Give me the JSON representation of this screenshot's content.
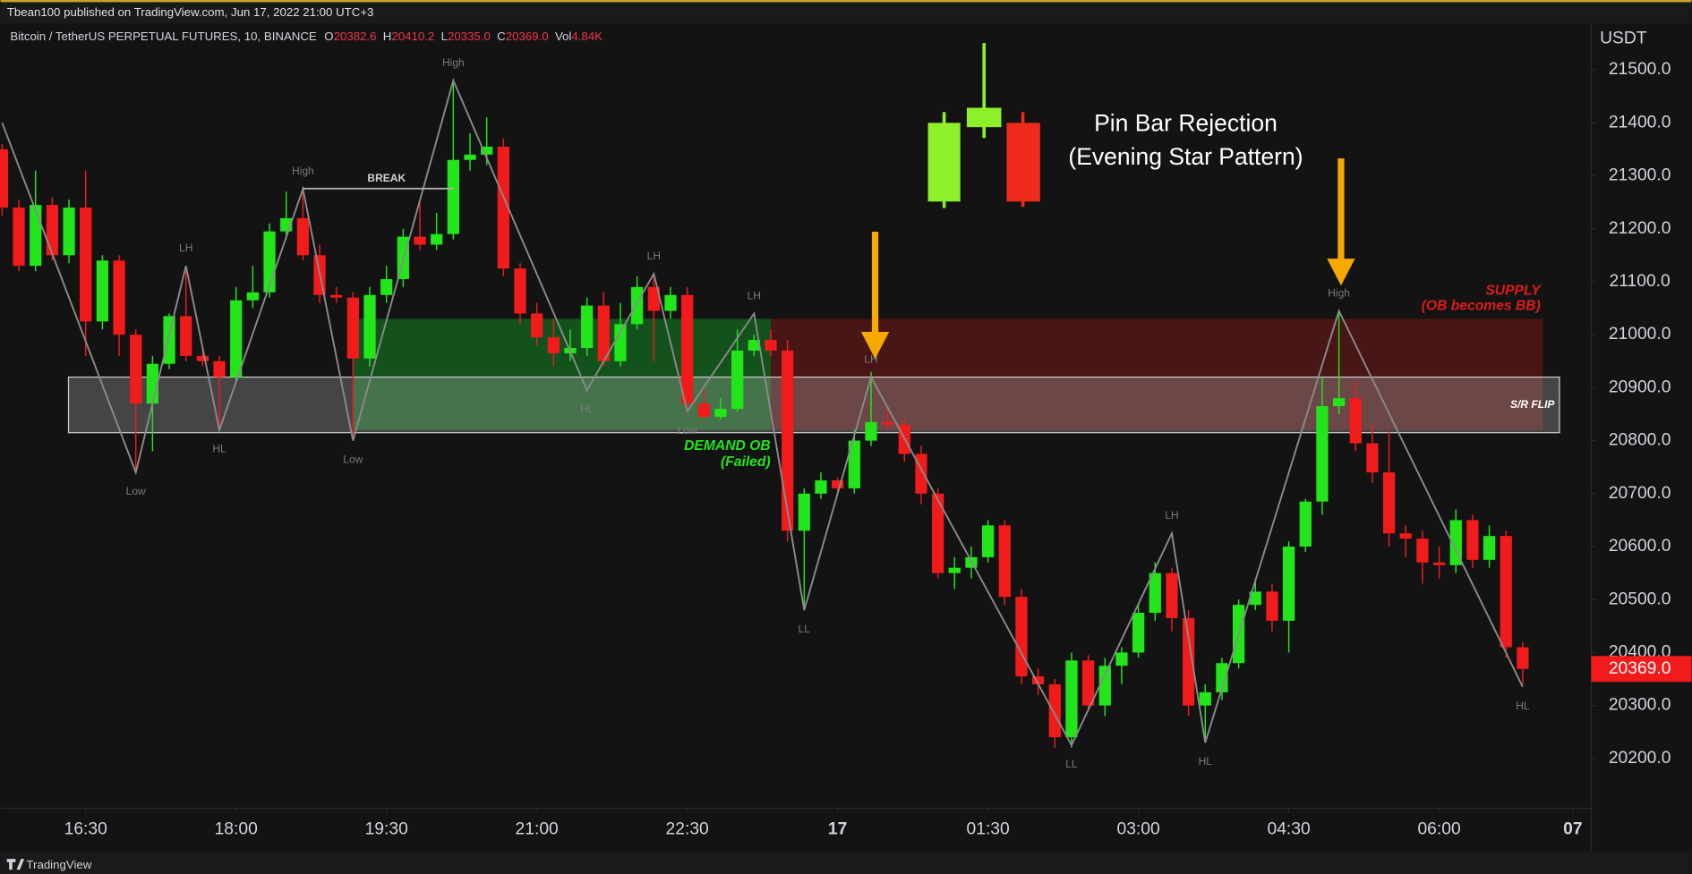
{
  "header": "Tbean100 published on TradingView.com, Jun 17, 2022 21:00 UTC+3",
  "footer": "TradingView",
  "chart_data": {
    "type": "candlestick",
    "legend": {
      "symbol": "Bitcoin / TetherUS PERPETUAL FUTURES, 10, BINANCE",
      "items": [
        {
          "key": "O",
          "value": 20382.6,
          "label": "20382.6"
        },
        {
          "key": "H",
          "value": 20410.2,
          "label": "20410.2"
        },
        {
          "key": "L",
          "value": 20335,
          "label": "20335.0"
        },
        {
          "key": "C",
          "value": 20369,
          "label": "20369.0"
        },
        {
          "key": "Vol",
          "value": 4840,
          "label": "4.84K"
        }
      ]
    },
    "y_axis_label": "USDT",
    "up_color": "#22e61a",
    "down_color": "#f21b1b",
    "open": [
      21350,
      21240,
      21130,
      21245,
      21150,
      21240,
      21025,
      21140,
      21000,
      20870,
      20945,
      21035,
      20960,
      20950,
      20920,
      21065,
      21080,
      21195,
      21220,
      21150,
      21075,
      21070,
      20955,
      21075,
      21105,
      21185,
      21170,
      21190,
      21330,
      21340,
      21355,
      21125,
      21040,
      20995,
      20965,
      20975,
      21055,
      20950,
      21020,
      21090,
      21045,
      21075,
      20870,
      20845,
      20860,
      20970,
      20990,
      20970,
      20630,
      20700,
      20725,
      20710,
      20800,
      20835,
      20830,
      20775,
      20700,
      20550,
      20560,
      20580,
      20640,
      20505,
      20355,
      20340,
      20240,
      20385,
      20300,
      20375,
      20400,
      20475,
      20550,
      20465,
      20300,
      20325,
      20380,
      20490,
      20515,
      20460,
      20600,
      20685,
      20865,
      20880,
      20795,
      20740,
      20625,
      20615,
      20570,
      20565,
      20650,
      20575,
      20620,
      20410
    ],
    "high": [
      21360,
      21255,
      21310,
      21260,
      21255,
      21310,
      21150,
      21150,
      21010,
      20960,
      21040,
      21130,
      20975,
      20960,
      21090,
      21130,
      21210,
      21270,
      21280,
      21170,
      21090,
      21080,
      21090,
      21130,
      21200,
      21250,
      21230,
      21480,
      21380,
      21410,
      21370,
      21135,
      21060,
      21030,
      21010,
      21070,
      21080,
      21060,
      21110,
      21115,
      21090,
      21090,
      20900,
      20880,
      21010,
      21000,
      21010,
      20990,
      20710,
      20740,
      20730,
      20820,
      20930,
      20860,
      20840,
      20790,
      20710,
      20580,
      20600,
      20650,
      20650,
      20520,
      20370,
      20350,
      20400,
      20395,
      20390,
      20410,
      20490,
      20570,
      20560,
      20480,
      20340,
      20390,
      20500,
      20540,
      20530,
      20610,
      20690,
      20920,
      21045,
      20910,
      20830,
      20820,
      20640,
      20630,
      20600,
      20670,
      20660,
      20640,
      20630,
      20420
    ],
    "low": [
      21225,
      21120,
      21120,
      21140,
      21135,
      20960,
      21010,
      20960,
      20740,
      20780,
      20935,
      20950,
      20940,
      20820,
      20910,
      21050,
      21070,
      21180,
      21140,
      21060,
      21060,
      20800,
      20940,
      21060,
      21090,
      21160,
      21160,
      21180,
      21310,
      21320,
      21110,
      21020,
      20980,
      20940,
      20950,
      20960,
      20940,
      20940,
      21010,
      20950,
      21030,
      20850,
      20840,
      20840,
      20855,
      20960,
      20960,
      20610,
      20480,
      20690,
      20700,
      20700,
      20790,
      20820,
      20760,
      20680,
      20540,
      20520,
      20540,
      20570,
      20490,
      20340,
      20320,
      20220,
      20220,
      20290,
      20280,
      20340,
      20390,
      20460,
      20440,
      20280,
      20230,
      20310,
      20370,
      20480,
      20440,
      20400,
      20590,
      20660,
      20850,
      20780,
      20720,
      20600,
      20580,
      20530,
      20540,
      20550,
      20560,
      20560,
      20390,
      20340
    ],
    "close": [
      21240,
      21130,
      21245,
      21150,
      21240,
      21025,
      21140,
      21000,
      20870,
      20945,
      21035,
      20960,
      20950,
      20920,
      21065,
      21080,
      21195,
      21220,
      21150,
      21075,
      21070,
      20955,
      21075,
      21105,
      21185,
      21170,
      21190,
      21330,
      21340,
      21355,
      21125,
      21040,
      20995,
      20965,
      20975,
      21055,
      20950,
      21020,
      21090,
      21045,
      21075,
      20870,
      20845,
      20860,
      20970,
      20990,
      20970,
      20630,
      20700,
      20725,
      20710,
      20800,
      20835,
      20830,
      20775,
      20700,
      20550,
      20560,
      20580,
      20640,
      20505,
      20355,
      20340,
      20240,
      20385,
      20300,
      20375,
      20400,
      20475,
      20550,
      20465,
      20300,
      20325,
      20380,
      20490,
      20515,
      20460,
      20600,
      20685,
      20865,
      20880,
      20795,
      20740,
      20625,
      20615,
      20570,
      20565,
      20650,
      20575,
      20620,
      20410,
      20369
    ],
    "xlim": [
      -0.1,
      95.1
    ],
    "ylim": [
      20106,
      21581
    ],
    "xticks": [
      {
        "value": 5,
        "label": "16:30"
      },
      {
        "value": 14,
        "label": "18:00"
      },
      {
        "value": 23,
        "label": "19:30"
      },
      {
        "value": 32,
        "label": "21:00"
      },
      {
        "value": 41,
        "label": "22:30"
      },
      {
        "value": 50,
        "label": "17"
      },
      {
        "value": 59,
        "label": "01:30"
      },
      {
        "value": 68,
        "label": "03:00"
      },
      {
        "value": 77,
        "label": "04:30"
      },
      {
        "value": 86,
        "label": "06:00"
      },
      {
        "value": 94,
        "label": "07"
      }
    ],
    "yticks": [
      {
        "value": 20200,
        "label": "20200.0"
      },
      {
        "value": 20300,
        "label": "20300.0"
      },
      {
        "value": 20400,
        "label": "20400.0"
      },
      {
        "value": 20500,
        "label": "20500.0"
      },
      {
        "value": 20600,
        "label": "20600.0"
      },
      {
        "value": 20700,
        "label": "20700.0"
      },
      {
        "value": 20800,
        "label": "20800.0"
      },
      {
        "value": 20900,
        "label": "20900.0"
      },
      {
        "value": 21000,
        "label": "21000.0"
      },
      {
        "value": 21100,
        "label": "21100.0"
      },
      {
        "value": 21200,
        "label": "21200.0"
      },
      {
        "value": 21300,
        "label": "21300.0"
      },
      {
        "value": 21400,
        "label": "21400.0"
      },
      {
        "value": 21500,
        "label": "21500.0"
      }
    ],
    "last_price": {
      "value": 20369,
      "label": "20369.0"
    },
    "zigzag": {
      "x": [
        0,
        8,
        11,
        13,
        18,
        21,
        27,
        35,
        39,
        41,
        45,
        48,
        52,
        64,
        70,
        72,
        80,
        91
      ],
      "y": [
        21400,
        20740,
        21130,
        20820,
        21275,
        20800,
        21480,
        20895,
        21115,
        20855,
        21040,
        20480,
        20920,
        20225,
        20625,
        20230,
        21045,
        20335
      ],
      "labels": [
        null,
        "Low",
        "LH",
        "HL",
        "High",
        "Low",
        "High",
        "HL",
        "LH",
        "Low",
        "LH",
        "LL",
        "LH",
        "LL",
        "LH",
        "HL",
        "High",
        "HL"
      ]
    },
    "zones": [
      {
        "name": "demand",
        "x": [
          21,
          46
        ],
        "top": 21030,
        "bottom": 20820,
        "color": "rgba(20,160,40,0.45)"
      },
      {
        "name": "supply",
        "x": [
          46,
          92.2
        ],
        "top": 21030,
        "bottom": 20820,
        "color": "rgba(200,30,30,0.30)"
      },
      {
        "name": "sr-flip",
        "x": [
          3.97,
          93.2
        ],
        "top": 20920,
        "bottom": 20815,
        "color": "rgba(200,200,200,0.28)"
      }
    ],
    "annotations": {
      "break": "BREAK",
      "demand": "DEMAND OB",
      "demand_note": "(Failed)",
      "supply": "SUPPLY",
      "supply_note": "(OB becomes BB)",
      "sr_flip": "S/R FLIP",
      "title_line1": "Pin Bar Rejection",
      "title_line2": "(Evening Star Pattern)"
    }
  }
}
